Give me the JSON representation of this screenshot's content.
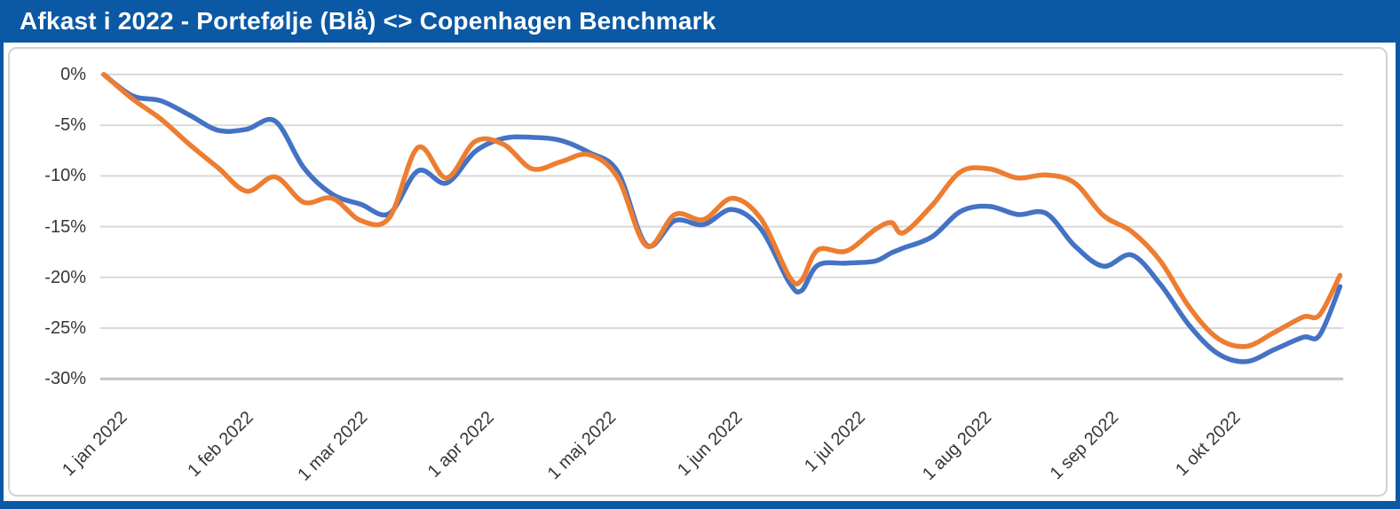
{
  "window": {
    "title": "Afkast i 2022 - Portefølje (Blå) <> Copenhagen Benchmark"
  },
  "colors": {
    "frame_and_header": "#0B59A5",
    "panel_border": "#d2d2d2",
    "gridline": "#d9d9d9",
    "bottom_axis_line": "#c4c4c4",
    "portfolio_line": "#4472C4",
    "benchmark_line": "#ED7D31",
    "axis_label_text": "#363636",
    "title_text": "#ffffff"
  },
  "chart_data": {
    "type": "line",
    "title": "Afkast i 2022 - Portefølje (Blå) <> Copenhagen Benchmark",
    "xlabel": "",
    "ylabel": "",
    "grid": true,
    "legend": false,
    "ylim": [
      -30,
      0
    ],
    "y_ticks": [
      {
        "label": "0%",
        "value": 0
      },
      {
        "label": "-5%",
        "value": -5
      },
      {
        "label": "-10%",
        "value": -10
      },
      {
        "label": "-15%",
        "value": -15
      },
      {
        "label": "-20%",
        "value": -20
      },
      {
        "label": "-25%",
        "value": -25
      },
      {
        "label": "-30%",
        "value": -30
      }
    ],
    "x_ticks": [
      {
        "label": "1 jan 2022",
        "day": 0
      },
      {
        "label": "1 feb 2022",
        "day": 31
      },
      {
        "label": "1 mar 2022",
        "day": 59
      },
      {
        "label": "1 apr 2022",
        "day": 90
      },
      {
        "label": "1 maj 2022",
        "day": 120
      },
      {
        "label": "1 jun 2022",
        "day": 151
      },
      {
        "label": "1 jul 2022",
        "day": 181
      },
      {
        "label": "1 aug 2022",
        "day": 212
      },
      {
        "label": "1 sep 2022",
        "day": 243
      },
      {
        "label": "1 okt 2022",
        "day": 273
      }
    ],
    "x_domain_days": [
      0,
      304
    ],
    "x_unit": "days since 1 jan 2022",
    "y_unit": "percent return",
    "days": [
      0,
      7,
      14,
      21,
      28,
      35,
      42,
      49,
      56,
      63,
      70,
      77,
      84,
      91,
      98,
      105,
      112,
      119,
      126,
      133,
      140,
      147,
      154,
      161,
      168,
      171,
      175,
      182,
      189,
      193,
      196,
      203,
      210,
      217,
      224,
      231,
      238,
      245,
      252,
      259,
      266,
      273,
      280,
      287,
      294,
      298,
      303
    ],
    "series": [
      {
        "name": "Portefølje (Blå)",
        "color": "#4472C4",
        "values": [
          0.0,
          -2.1,
          -2.6,
          -4.0,
          -5.5,
          -5.4,
          -4.6,
          -9.2,
          -11.8,
          -12.8,
          -13.7,
          -9.5,
          -10.7,
          -7.6,
          -6.3,
          -6.2,
          -6.5,
          -7.7,
          -9.6,
          -16.8,
          -14.4,
          -14.8,
          -13.3,
          -15.2,
          -20.5,
          -21.3,
          -18.8,
          -18.6,
          -18.4,
          -17.6,
          -17.1,
          -16.0,
          -13.5,
          -13.0,
          -13.8,
          -13.7,
          -16.9,
          -18.9,
          -17.8,
          -20.7,
          -24.7,
          -27.5,
          -28.3,
          -27.1,
          -25.9,
          -25.7,
          -20.9
        ]
      },
      {
        "name": "Copenhagen Benchmark",
        "color": "#ED7D31",
        "values": [
          0.0,
          -2.4,
          -4.4,
          -6.9,
          -9.2,
          -11.5,
          -10.1,
          -12.6,
          -12.2,
          -14.4,
          -14.1,
          -7.2,
          -10.2,
          -6.6,
          -6.9,
          -9.3,
          -8.6,
          -7.9,
          -10.2,
          -16.9,
          -13.8,
          -14.3,
          -12.2,
          -14.2,
          -19.9,
          -20.3,
          -17.3,
          -17.4,
          -15.3,
          -14.6,
          -15.6,
          -12.9,
          -9.6,
          -9.3,
          -10.2,
          -9.9,
          -10.7,
          -13.9,
          -15.5,
          -18.4,
          -22.9,
          -26.0,
          -26.8,
          -25.4,
          -23.9,
          -23.7,
          -19.8
        ]
      }
    ]
  }
}
